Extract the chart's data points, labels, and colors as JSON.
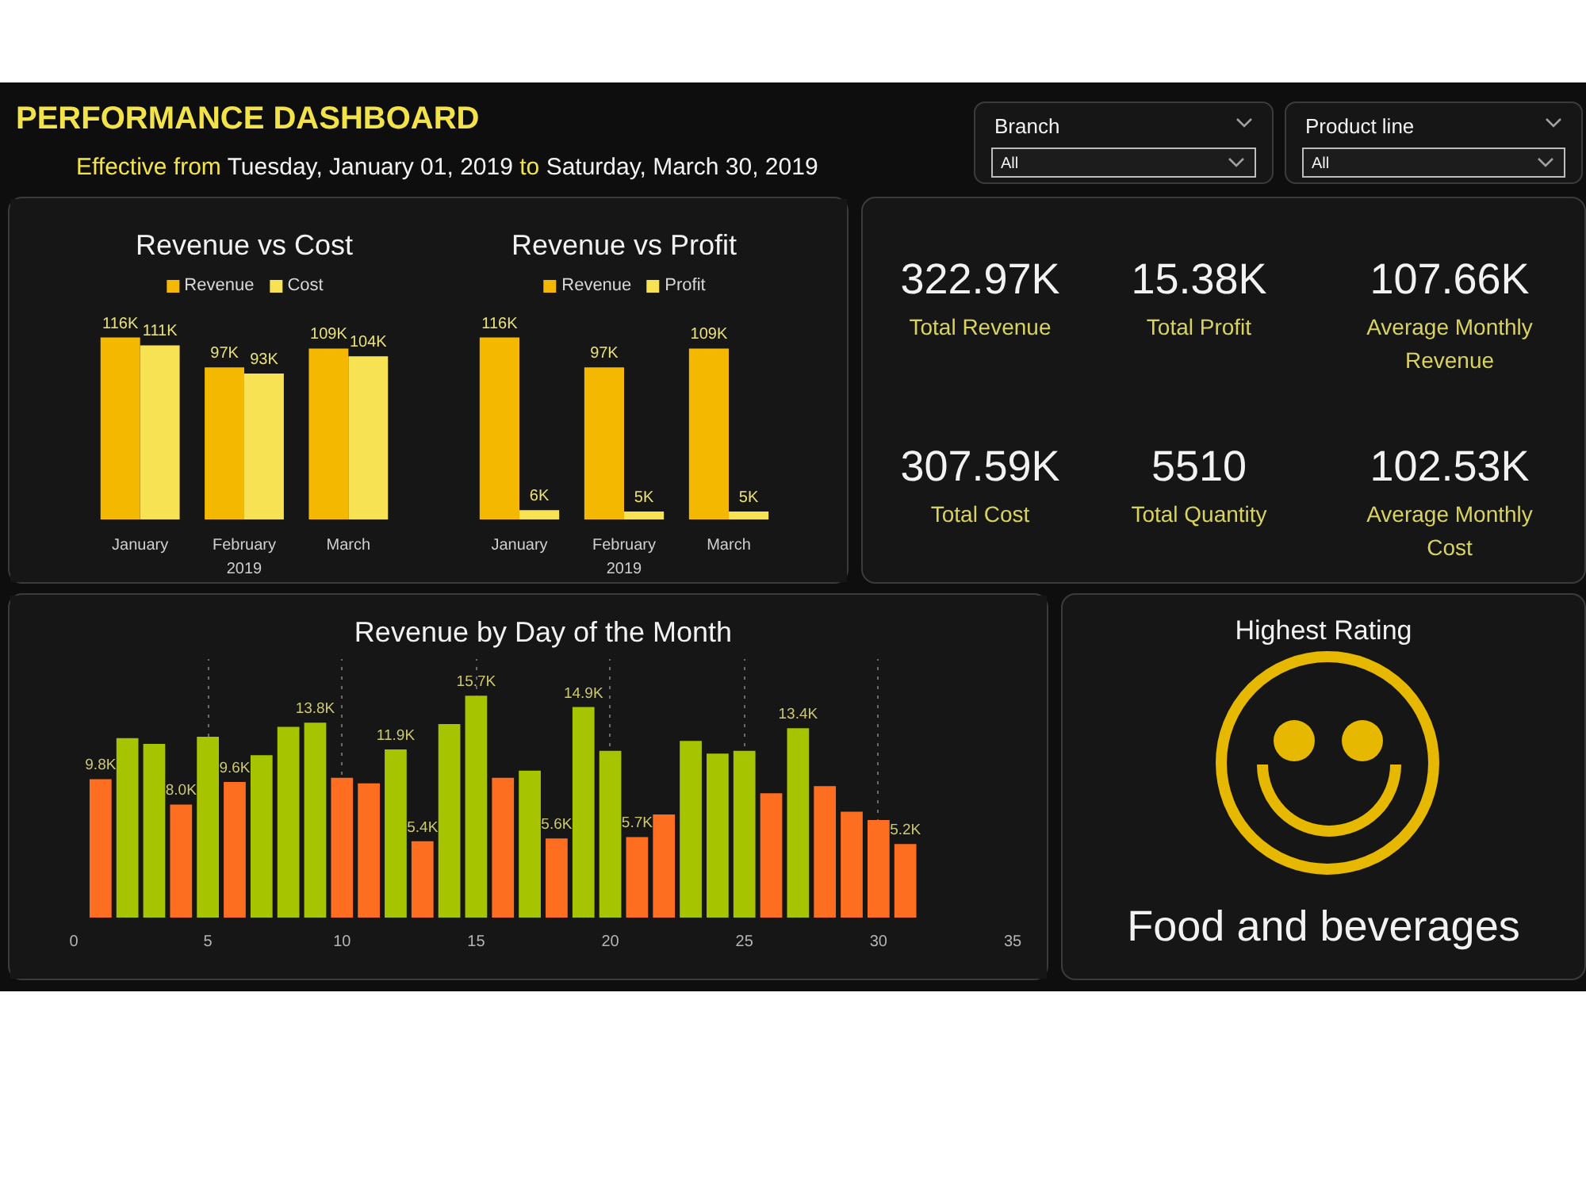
{
  "chart_data": [
    {
      "type": "other",
      "title": "PERFORMANCE DASHBOARD",
      "annotations": [
        "Effective from",
        "Tuesday, January 01, 2019",
        "to",
        "Saturday, March 30, 2019"
      ]
    },
    {
      "type": "other",
      "title": "Branch",
      "annotations": [
        "All"
      ]
    },
    {
      "type": "other",
      "title": "Product line",
      "annotations": [
        "All"
      ]
    },
    {
      "type": "bar",
      "title": "Revenue vs Cost",
      "categories": [
        "January",
        "February",
        "March"
      ],
      "xlabel": "2019",
      "tick_labels": "x",
      "legend": "top",
      "series": [
        {
          "name": "Revenue",
          "color": "#f5b800",
          "values": [
            116000,
            97000,
            109000
          ],
          "value_labels": [
            "116K",
            "97K",
            "109K"
          ]
        },
        {
          "name": "Cost",
          "color": "#f6e253",
          "values": [
            111000,
            93000,
            104000
          ],
          "value_labels": [
            "111K",
            "93K",
            "104K"
          ]
        }
      ]
    },
    {
      "type": "bar",
      "title": "Revenue vs Profit",
      "categories": [
        "January",
        "February",
        "March"
      ],
      "xlabel": "2019",
      "tick_labels": "x",
      "legend": "top",
      "series": [
        {
          "name": "Revenue",
          "color": "#f5b800",
          "values": [
            116000,
            97000,
            109000
          ],
          "value_labels": [
            "116K",
            "97K",
            "109K"
          ]
        },
        {
          "name": "Profit",
          "color": "#f6e253",
          "values": [
            6000,
            5000,
            5000
          ],
          "value_labels": [
            "6K",
            "5K",
            "5K"
          ]
        }
      ]
    },
    {
      "type": "other",
      "annotations": [
        "322.97K",
        "Total Revenue",
        "15.38K",
        "Total Profit",
        "107.66K",
        "Average Monthly Revenue",
        "307.59K",
        "Total Cost",
        "5510",
        "Total Quantity",
        "102.53K",
        "Average Monthly Cost"
      ]
    },
    {
      "type": "bar",
      "title": "Revenue by Day of the Month",
      "x": [
        1,
        2,
        3,
        4,
        5,
        6,
        7,
        8,
        9,
        10,
        11,
        12,
        13,
        14,
        15,
        16,
        17,
        18,
        19,
        20,
        21,
        22,
        23,
        24,
        25,
        26,
        27,
        28,
        29,
        30,
        31
      ],
      "xlim": [
        0,
        35
      ],
      "xticks": [
        0,
        5,
        10,
        15,
        20,
        25,
        30,
        35
      ],
      "ylim": [
        0,
        18300
      ],
      "tick_labels": "x",
      "grid": "x",
      "values": [
        9800,
        12700,
        12300,
        8000,
        12800,
        9600,
        11500,
        13500,
        13800,
        9900,
        9500,
        11900,
        5400,
        13700,
        15700,
        9900,
        10400,
        5600,
        14900,
        11800,
        5700,
        7300,
        12500,
        11600,
        11800,
        8800,
        13400,
        9300,
        7500,
        6900,
        5200
      ],
      "colors": [
        "#fd6e21",
        "#a6c400",
        "#a6c400",
        "#fd6e21",
        "#a6c400",
        "#fd6e21",
        "#a6c400",
        "#a6c400",
        "#a6c400",
        "#fd6e21",
        "#fd6e21",
        "#a6c400",
        "#fd6e21",
        "#a6c400",
        "#a6c400",
        "#fd6e21",
        "#a6c400",
        "#fd6e21",
        "#a6c400",
        "#a6c400",
        "#fd6e21",
        "#fd6e21",
        "#a6c400",
        "#a6c400",
        "#a6c400",
        "#fd6e21",
        "#a6c400",
        "#fd6e21",
        "#fd6e21",
        "#fd6e21",
        "#fd6e21"
      ],
      "value_labels": [
        "9.8K",
        null,
        null,
        "8.0K",
        null,
        "9.6K",
        null,
        null,
        "13.8K",
        null,
        null,
        "11.9K",
        "5.4K",
        null,
        "15.7K",
        null,
        null,
        "5.6K",
        "14.9K",
        null,
        "5.7K",
        null,
        null,
        null,
        null,
        null,
        "13.4K",
        null,
        null,
        null,
        "5.2K"
      ]
    },
    {
      "type": "other",
      "title": "Highest Rating",
      "annotations": [
        "Food and beverages"
      ]
    }
  ]
}
